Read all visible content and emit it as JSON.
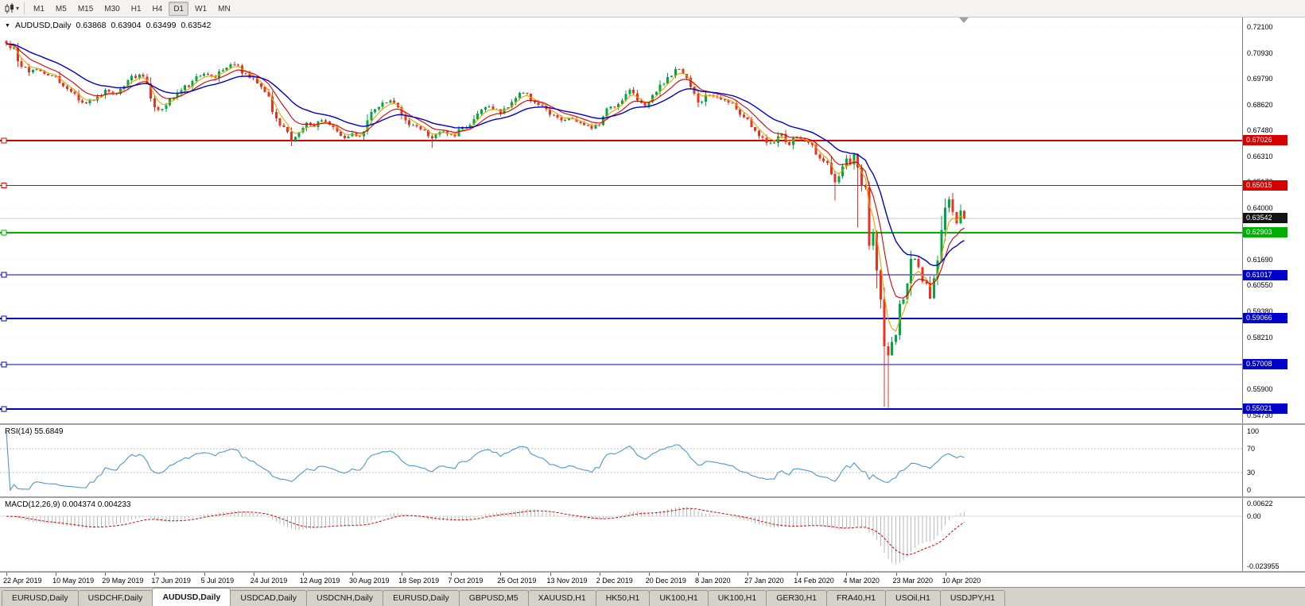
{
  "toolbar": {
    "timeframes": [
      "M1",
      "M5",
      "M15",
      "M30",
      "H1",
      "H4",
      "D1",
      "W1",
      "MN"
    ],
    "active_timeframe": "D1"
  },
  "chart": {
    "symbol_title": "AUDUSD,Daily",
    "ohlc": {
      "open": "0.63868",
      "high": "0.63904",
      "low": "0.63499",
      "close": "0.63542"
    },
    "current_price": "0.63542",
    "current_price_tag_color": "#141414",
    "price_axis_labels": [
      "0.72100",
      "0.70930",
      "0.69790",
      "0.68620",
      "0.67480",
      "0.66310",
      "0.65170",
      "0.64000",
      "0.62860",
      "0.61690",
      "0.60550",
      "0.59380",
      "0.58210",
      "0.57040",
      "0.55900",
      "0.54730"
    ],
    "levels": [
      {
        "price": 0.67026,
        "label": "0.67026",
        "color": "#d60000",
        "width": 2
      },
      {
        "price": 0.65015,
        "label": "0.65015",
        "color": "#d60000",
        "width": 1
      },
      {
        "price": 0.62903,
        "label": "0.62903",
        "color": "#00b000",
        "width": 2
      },
      {
        "price": 0.61017,
        "label": "0.61017",
        "color": "#0000cc",
        "width": 1
      },
      {
        "price": 0.59066,
        "label": "0.59066",
        "color": "#0000cc",
        "width": 2
      },
      {
        "price": 0.57008,
        "label": "0.57008",
        "color": "#0000cc",
        "width": 1
      },
      {
        "price": 0.55021,
        "label": "0.55021",
        "color": "#0000cc",
        "width": 2
      }
    ]
  },
  "rsi": {
    "label": "RSI(14) 55.6849",
    "axis_labels": [
      "100",
      "70",
      "30",
      "0"
    ],
    "line_color": "#4e96d1"
  },
  "macd": {
    "label": "MACD(12,26,9) 0.004374 0.004233",
    "axis_labels": [
      "0.00622",
      "0.00",
      "-0.023955"
    ],
    "histogram_color": "#b9b9b9",
    "signal_color": "#d60000"
  },
  "date_axis": [
    "22 Apr 2019",
    "10 May 2019",
    "29 May 2019",
    "17 Jun 2019",
    "5 Jul 2019",
    "24 Jul 2019",
    "12 Aug 2019",
    "30 Aug 2019",
    "18 Sep 2019",
    "7 Oct 2019",
    "25 Oct 2019",
    "13 Nov 2019",
    "2 Dec 2019",
    "20 Dec 2019",
    "8 Jan 2020",
    "27 Jan 2020",
    "14 Feb 2020",
    "4 Mar 2020",
    "23 Mar 2020",
    "10 Apr 2020"
  ],
  "tabs": [
    {
      "label": "EURUSD,Daily",
      "active": false
    },
    {
      "label": "USDCHF,Daily",
      "active": false
    },
    {
      "label": "AUDUSD,Daily",
      "active": true
    },
    {
      "label": "USDCAD,Daily",
      "active": false
    },
    {
      "label": "USDCNH,Daily",
      "active": false
    },
    {
      "label": "EURUSD,Daily",
      "active": false
    },
    {
      "label": "GBPUSD,M5",
      "active": false
    },
    {
      "label": "XAUUSD,H1",
      "active": false
    },
    {
      "label": "HK50,H1",
      "active": false
    },
    {
      "label": "UK100,H1",
      "active": false
    },
    {
      "label": "UK100,H1",
      "active": false
    },
    {
      "label": "GER30,H1",
      "active": false
    },
    {
      "label": "FRA40,H1",
      "active": false
    },
    {
      "label": "USOil,H1",
      "active": false
    },
    {
      "label": "USDJPY,H1",
      "active": false
    }
  ],
  "colors": {
    "up_candle": "#00a845",
    "down_candle": "#ea3223",
    "grid": "#ececec",
    "bid_line": "#c9c9c9"
  },
  "chart_data": {
    "type": "candlestick",
    "symbol": "AUDUSD",
    "timeframe": "Daily",
    "x_range": [
      "22 Apr 2019",
      "17 Apr 2020"
    ],
    "y_range": [
      0.5473,
      0.721
    ],
    "num_candles": 253,
    "close_anchors": [
      [
        0,
        0.7135
      ],
      [
        2,
        0.7118
      ],
      [
        4,
        0.7032
      ],
      [
        6,
        0.7007
      ],
      [
        8,
        0.7022
      ],
      [
        11,
        0.6994
      ],
      [
        13,
        0.699
      ],
      [
        15,
        0.6945
      ],
      [
        17,
        0.692
      ],
      [
        20,
        0.6872
      ],
      [
        23,
        0.6882
      ],
      [
        26,
        0.693
      ],
      [
        29,
        0.6912
      ],
      [
        32,
        0.6972
      ],
      [
        35,
        0.6996
      ],
      [
        37,
        0.6958
      ],
      [
        39,
        0.6852
      ],
      [
        40,
        0.6838
      ],
      [
        43,
        0.6888
      ],
      [
        46,
        0.6928
      ],
      [
        49,
        0.6968
      ],
      [
        52,
        0.7
      ],
      [
        55,
        0.6982
      ],
      [
        58,
        0.7028
      ],
      [
        60,
        0.7042
      ],
      [
        63,
        0.7002
      ],
      [
        65,
        0.698
      ],
      [
        67,
        0.6942
      ],
      [
        69,
        0.69
      ],
      [
        71,
        0.6802
      ],
      [
        73,
        0.6762
      ],
      [
        75,
        0.6702
      ],
      [
        77,
        0.674
      ],
      [
        79,
        0.6782
      ],
      [
        81,
        0.6762
      ],
      [
        83,
        0.6792
      ],
      [
        85,
        0.6772
      ],
      [
        87,
        0.6742
      ],
      [
        89,
        0.6712
      ],
      [
        91,
        0.6736
      ],
      [
        93,
        0.6722
      ],
      [
        95,
        0.6792
      ],
      [
        97,
        0.6842
      ],
      [
        99,
        0.6872
      ],
      [
        101,
        0.6882
      ],
      [
        103,
        0.6852
      ],
      [
        105,
        0.6792
      ],
      [
        107,
        0.6772
      ],
      [
        109,
        0.6752
      ],
      [
        111,
        0.6722
      ],
      [
        112,
        0.6712
      ],
      [
        114,
        0.6742
      ],
      [
        116,
        0.6732
      ],
      [
        118,
        0.6722
      ],
      [
        120,
        0.6762
      ],
      [
        122,
        0.6772
      ],
      [
        124,
        0.6822
      ],
      [
        126,
        0.6852
      ],
      [
        128,
        0.6842
      ],
      [
        130,
        0.6822
      ],
      [
        132,
        0.6852
      ],
      [
        134,
        0.6892
      ],
      [
        136,
        0.6916
      ],
      [
        138,
        0.6882
      ],
      [
        140,
        0.6862
      ],
      [
        142,
        0.6842
      ],
      [
        144,
        0.6816
      ],
      [
        146,
        0.6792
      ],
      [
        148,
        0.6802
      ],
      [
        150,
        0.6786
      ],
      [
        152,
        0.6772
      ],
      [
        154,
        0.6756
      ],
      [
        156,
        0.6772
      ],
      [
        158,
        0.6846
      ],
      [
        160,
        0.6852
      ],
      [
        162,
        0.6882
      ],
      [
        164,
        0.693
      ],
      [
        166,
        0.6882
      ],
      [
        168,
        0.6856
      ],
      [
        170,
        0.6906
      ],
      [
        172,
        0.6952
      ],
      [
        174,
        0.6986
      ],
      [
        176,
        0.7022
      ],
      [
        178,
        0.7
      ],
      [
        180,
        0.6942
      ],
      [
        182,
        0.6872
      ],
      [
        184,
        0.6906
      ],
      [
        186,
        0.69
      ],
      [
        188,
        0.6886
      ],
      [
        190,
        0.6872
      ],
      [
        192,
        0.6842
      ],
      [
        194,
        0.6806
      ],
      [
        196,
        0.6762
      ],
      [
        198,
        0.6722
      ],
      [
        200,
        0.6692
      ],
      [
        202,
        0.6692
      ],
      [
        204,
        0.6732
      ],
      [
        206,
        0.6682
      ],
      [
        208,
        0.6716
      ],
      [
        210,
        0.6702
      ],
      [
        212,
        0.6682
      ],
      [
        214,
        0.6622
      ],
      [
        216,
        0.6602
      ],
      [
        217,
        0.6552
      ],
      [
        218,
        0.6516
      ],
      [
        219,
        0.6542
      ],
      [
        220,
        0.6586
      ],
      [
        221,
        0.6622
      ],
      [
        222,
        0.6596
      ],
      [
        223,
        0.6642
      ],
      [
        224,
        0.6582
      ],
      [
        225,
        0.6502
      ],
      [
        226,
        0.6492
      ],
      [
        227,
        0.6232
      ],
      [
        228,
        0.6292
      ],
      [
        229,
        0.6122
      ],
      [
        230,
        0.5992
      ],
      [
        231,
        0.5782
      ],
      [
        232,
        0.5742
      ],
      [
        233,
        0.5802
      ],
      [
        234,
        0.5832
      ],
      [
        235,
        0.5972
      ],
      [
        236,
        0.5992
      ],
      [
        237,
        0.6062
      ],
      [
        238,
        0.6172
      ],
      [
        239,
        0.6172
      ],
      [
        240,
        0.6136
      ],
      [
        241,
        0.6072
      ],
      [
        242,
        0.6062
      ],
      [
        243,
        0.5996
      ],
      [
        244,
        0.6086
      ],
      [
        245,
        0.6166
      ],
      [
        246,
        0.6302
      ],
      [
        247,
        0.6402
      ],
      [
        248,
        0.644
      ],
      [
        249,
        0.6382
      ],
      [
        250,
        0.6332
      ],
      [
        251,
        0.639
      ],
      [
        252,
        0.63542
      ]
    ],
    "spikes": [
      {
        "i": 0,
        "high": 0.7152
      },
      {
        "i": 40,
        "low": 0.6832
      },
      {
        "i": 60,
        "high": 0.7055
      },
      {
        "i": 75,
        "low": 0.6677
      },
      {
        "i": 112,
        "low": 0.667
      },
      {
        "i": 176,
        "high": 0.7032
      },
      {
        "i": 218,
        "low": 0.6434
      },
      {
        "i": 224,
        "low": 0.6313
      },
      {
        "i": 227,
        "low": 0.6213
      },
      {
        "i": 231,
        "low": 0.551
      },
      {
        "i": 232,
        "low": 0.5506
      },
      {
        "i": 248,
        "high": 0.6445
      }
    ],
    "moving_averages": [
      {
        "name": "fast-ma",
        "type": "EMA",
        "period": 4,
        "color": "#f0a000"
      },
      {
        "name": "medium-ma",
        "type": "EMA",
        "period": 9,
        "color": "#d60000"
      },
      {
        "name": "slow-ma",
        "type": "EMA",
        "period": 21,
        "color": "#0000cc"
      }
    ],
    "indicators": {
      "rsi": {
        "period": 14,
        "current": 55.6849,
        "levels": [
          70,
          30
        ]
      },
      "macd": {
        "fast": 12,
        "slow": 26,
        "signal": 9,
        "current_main": 0.004374,
        "current_signal": 0.004233,
        "scale_max": 0.0065,
        "scale_min": -0.024
      }
    }
  }
}
